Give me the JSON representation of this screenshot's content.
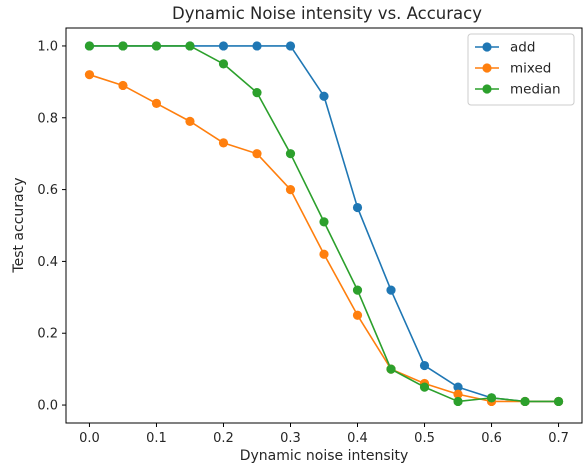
{
  "chart_data": {
    "type": "line",
    "title": "Dynamic Noise intensity vs. Accuracy",
    "xlabel": "Dynamic noise intensity",
    "ylabel": "Test accuracy",
    "xlim": [
      -0.035,
      0.735
    ],
    "ylim": [
      -0.05,
      1.05
    ],
    "xticks": [
      0.0,
      0.1,
      0.2,
      0.3,
      0.4,
      0.5,
      0.6,
      0.7
    ],
    "xtick_labels": [
      "0.0",
      "0.1",
      "0.2",
      "0.3",
      "0.4",
      "0.5",
      "0.6",
      "0.7"
    ],
    "yticks": [
      0.0,
      0.2,
      0.4,
      0.6,
      0.8,
      1.0
    ],
    "ytick_labels": [
      "0.0",
      "0.2",
      "0.4",
      "0.6",
      "0.8",
      "1.0"
    ],
    "grid": false,
    "legend_position": "top-right",
    "x": [
      0.0,
      0.05,
      0.1,
      0.15,
      0.2,
      0.25,
      0.3,
      0.35,
      0.4,
      0.45,
      0.5,
      0.55,
      0.6,
      0.65,
      0.7
    ],
    "series": [
      {
        "name": "add",
        "color": "#1f77b4",
        "values": [
          1.0,
          1.0,
          1.0,
          1.0,
          1.0,
          1.0,
          1.0,
          0.86,
          0.55,
          0.32,
          0.11,
          0.05,
          0.02,
          0.01,
          0.01
        ]
      },
      {
        "name": "mixed",
        "color": "#ff7f0e",
        "values": [
          0.92,
          0.89,
          0.84,
          0.79,
          0.73,
          0.7,
          0.6,
          0.42,
          0.25,
          0.1,
          0.06,
          0.03,
          0.01,
          0.01,
          0.01
        ]
      },
      {
        "name": "median",
        "color": "#2ca02c",
        "values": [
          1.0,
          1.0,
          1.0,
          1.0,
          0.95,
          0.87,
          0.7,
          0.51,
          0.32,
          0.1,
          0.05,
          0.01,
          0.02,
          0.01,
          0.01
        ]
      }
    ]
  }
}
